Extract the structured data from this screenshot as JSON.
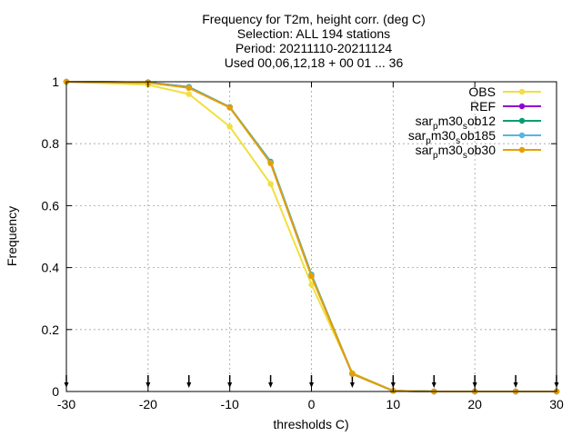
{
  "chart_data": {
    "type": "line",
    "title_lines": [
      "Frequency  for T2m, height corr. (deg C)",
      "Selection: ALL    194 stations",
      "Period: 20211110-20211124",
      "Used 00,06,12,18 + 00 01 ... 36"
    ],
    "xlabel": "thresholds C)",
    "ylabel": "Frequency",
    "xlim": [
      -30,
      30
    ],
    "ylim": [
      0,
      1
    ],
    "x_ticks": [
      -30,
      -20,
      -10,
      0,
      10,
      20,
      30
    ],
    "y_ticks": [
      0,
      0.2,
      0.4,
      0.6,
      0.8,
      1
    ],
    "y_tick_labels": [
      "0",
      "0.2",
      "0.4",
      "0.6",
      "0.8",
      "1"
    ],
    "grid": true,
    "legend_position": "top-right",
    "threshold_markers_x": [
      -30,
      -20,
      -15,
      -10,
      -5,
      0,
      5,
      10,
      15,
      20,
      25,
      30
    ],
    "x": [
      -30,
      -20,
      -15,
      -10,
      -5,
      0,
      5,
      10,
      15,
      20,
      25,
      30
    ],
    "series": [
      {
        "name": "OBS",
        "legend": [
          "OBS"
        ],
        "color": "#f0e040",
        "marker": "circle",
        "values": [
          1.0,
          0.99,
          0.96,
          0.855,
          0.67,
          0.345,
          0.06,
          0.002,
          0.0,
          0.0,
          0.0,
          0.0
        ]
      },
      {
        "name": "REF",
        "legend": [
          "REF"
        ],
        "color": "#9400d3",
        "marker": "circle",
        "values": [
          1.0,
          0.998,
          0.983,
          0.918,
          0.738,
          0.373,
          0.057,
          0.002,
          0.0,
          0.0,
          0.0,
          0.0
        ]
      },
      {
        "name": "sar_p m30_s ob12",
        "legend": [
          "sar",
          "p",
          "m30",
          "s",
          "ob12"
        ],
        "color": "#009e73",
        "marker": "circle",
        "values": [
          1.0,
          0.998,
          0.983,
          0.918,
          0.742,
          0.377,
          0.057,
          0.002,
          0.0,
          0.0,
          0.0,
          0.0
        ]
      },
      {
        "name": "sar_p m30_s ob185",
        "legend": [
          "sar",
          "p",
          "m30",
          "s",
          "ob185"
        ],
        "color": "#56b4e9",
        "marker": "circle",
        "values": [
          1.0,
          0.997,
          0.982,
          0.917,
          0.74,
          0.375,
          0.057,
          0.002,
          0.0,
          0.0,
          0.0,
          0.0
        ]
      },
      {
        "name": "sar_p m30_s ob30",
        "legend": [
          "sar",
          "p",
          "m30",
          "s",
          "ob30"
        ],
        "color": "#e69f00",
        "marker": "circle",
        "values": [
          1.0,
          0.997,
          0.98,
          0.917,
          0.737,
          0.372,
          0.057,
          0.002,
          0.0,
          0.0,
          0.0,
          0.0
        ]
      }
    ]
  }
}
